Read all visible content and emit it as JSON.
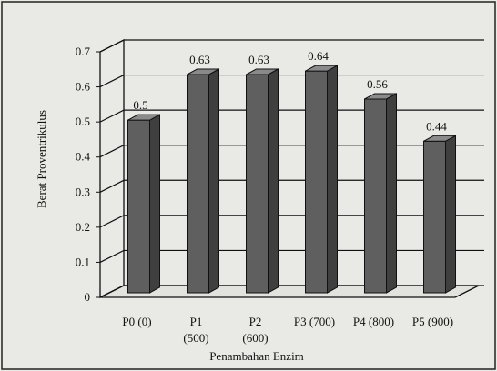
{
  "chart_data": {
    "type": "bar",
    "categories": [
      "P0 (0)",
      "P1 (500)",
      "P2 (600)",
      "P3 (700)",
      "P4 (800)",
      "P5 (900)"
    ],
    "category_lines": [
      [
        "P0 (0)"
      ],
      [
        "P1",
        "(500)"
      ],
      [
        "P2",
        "(600)"
      ],
      [
        "P3 (700)"
      ],
      [
        "P4 (800)"
      ],
      [
        "P5 (900)"
      ]
    ],
    "values": [
      0.5,
      0.63,
      0.63,
      0.64,
      0.56,
      0.44
    ],
    "data_labels": [
      "0.5",
      "0.63",
      "0.63",
      "0.64",
      "0.56",
      "0.44"
    ],
    "title": "",
    "xlabel": "Penambahan Enzim",
    "ylabel": "Berat Proventrikulus",
    "ylim": [
      0,
      0.7
    ],
    "yticks": [
      "0",
      "0.1",
      "0.2",
      "0.3",
      "0.4",
      "0.5",
      "0.6",
      "0.7"
    ],
    "grid": true,
    "style": "3d-column",
    "bar_color": "#5f5f5f"
  }
}
